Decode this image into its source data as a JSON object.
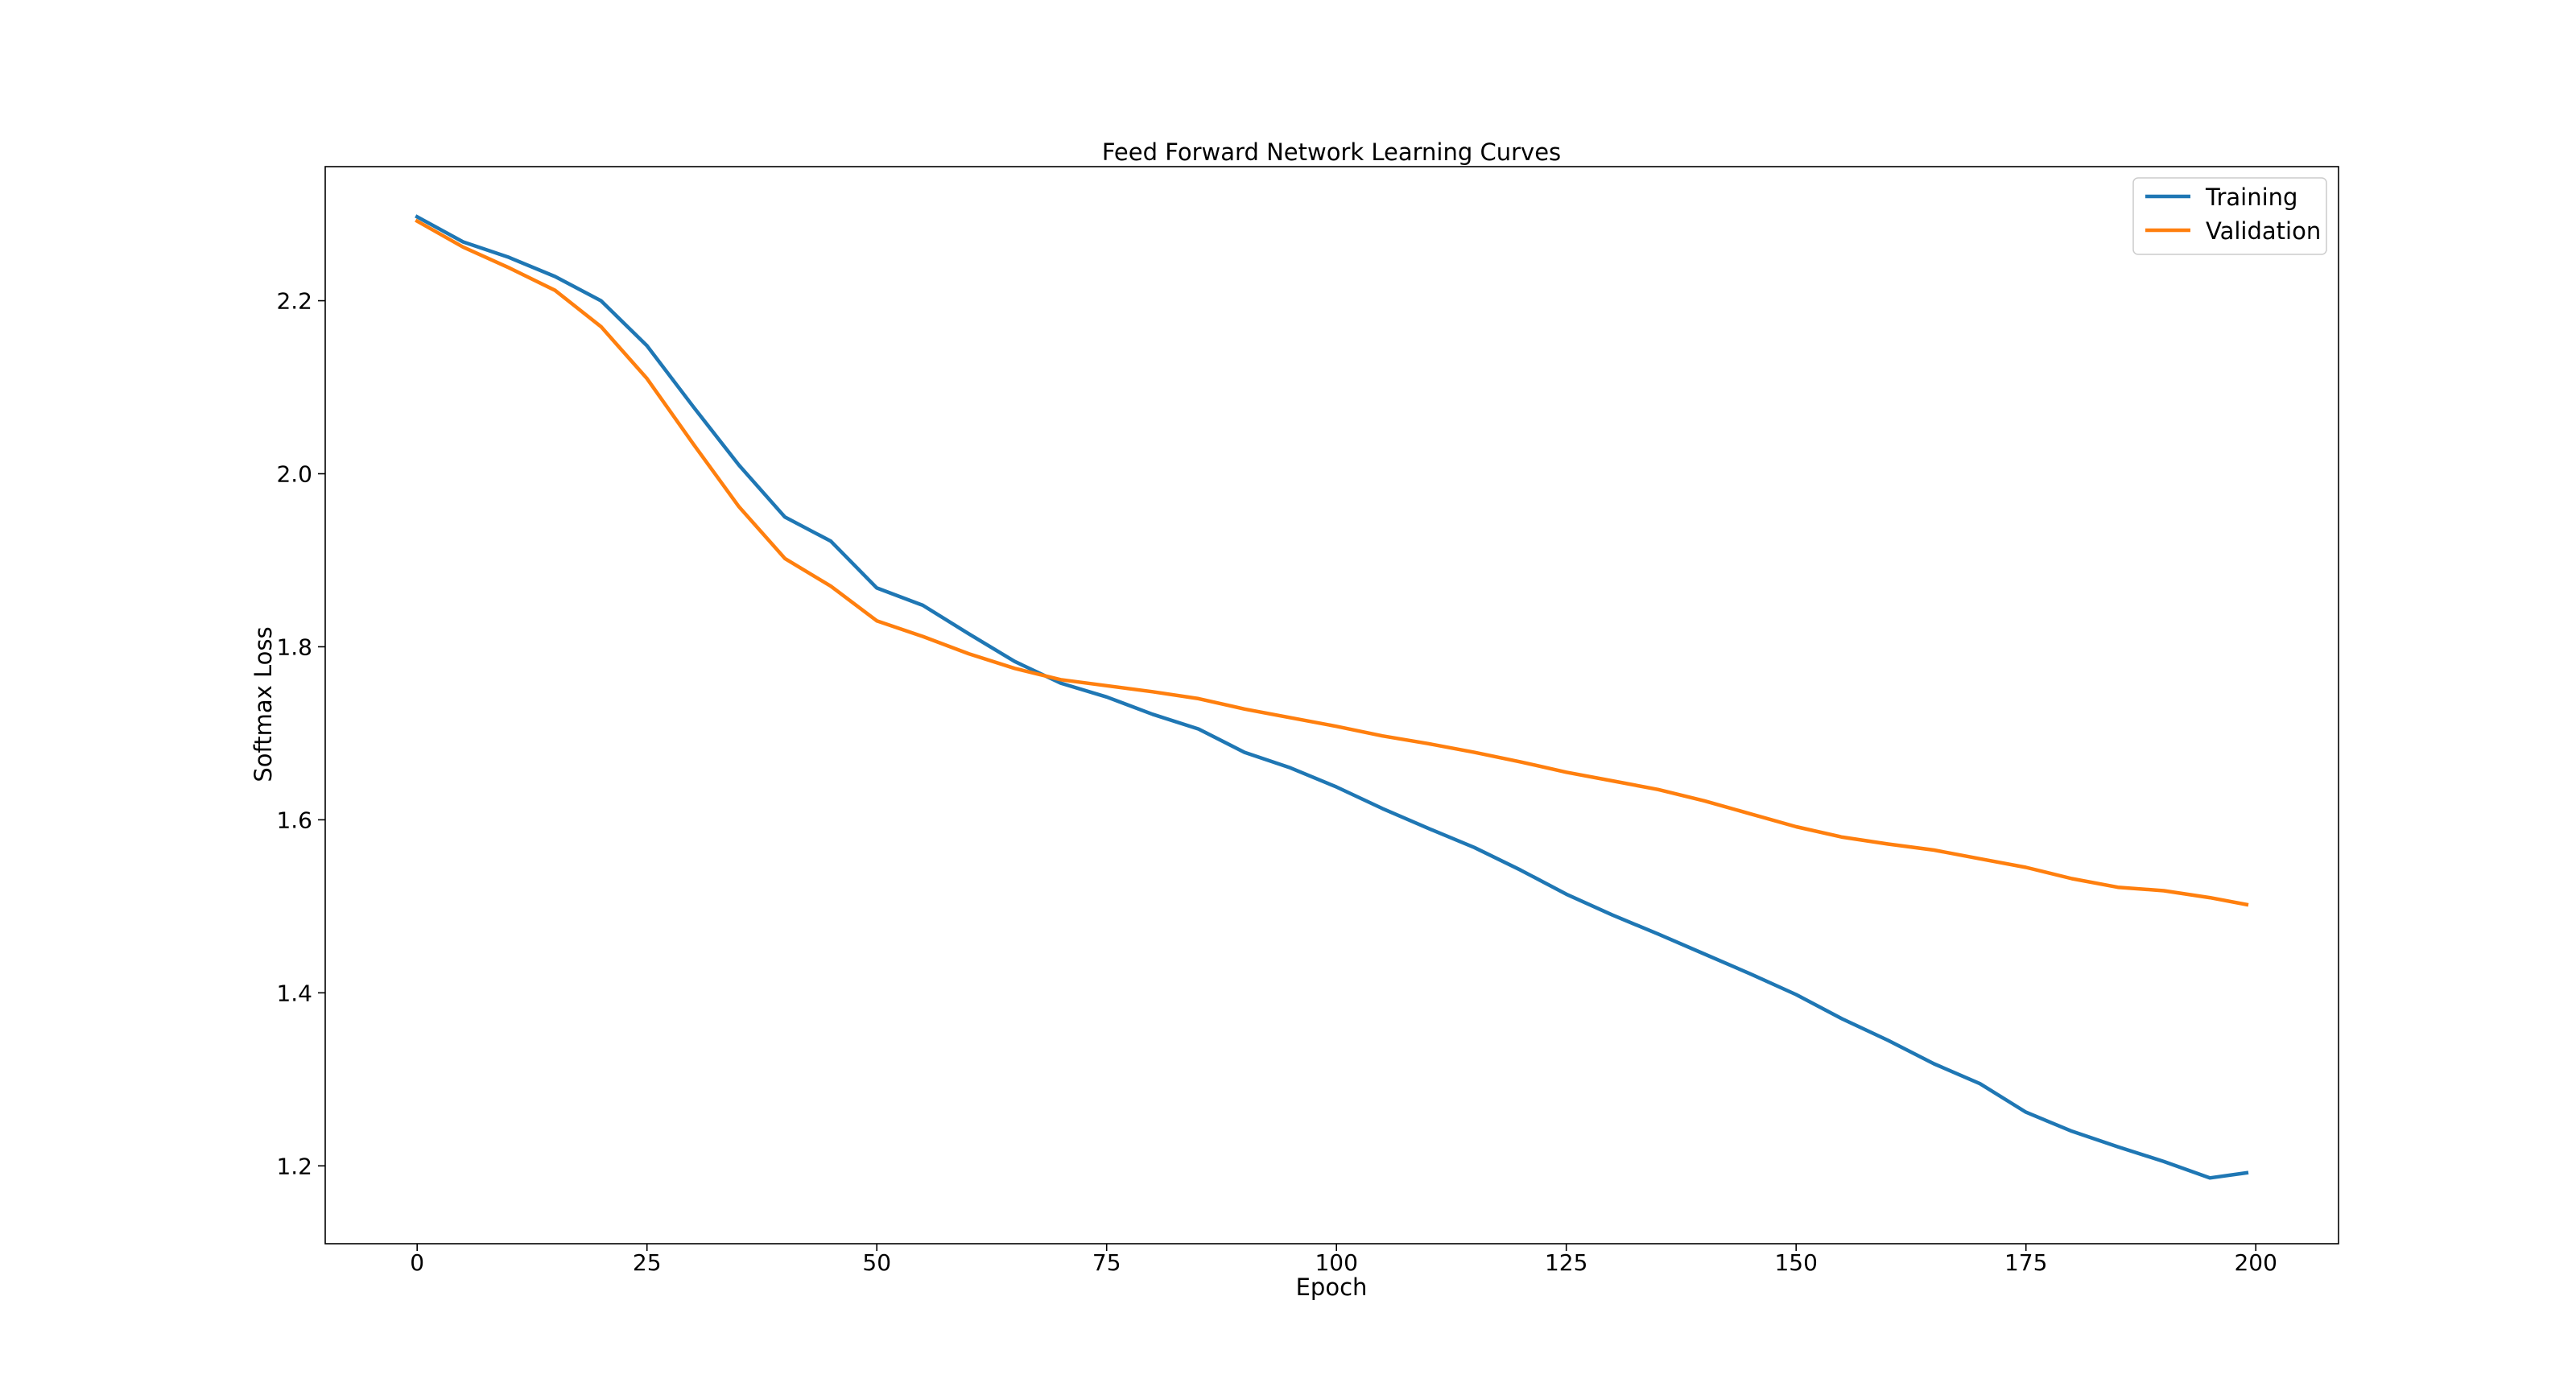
{
  "chart_data": {
    "type": "line",
    "title": "Feed Forward Network Learning Curves",
    "xlabel": "Epoch",
    "ylabel": "Softmax Loss",
    "xlim": [
      -10,
      209
    ],
    "ylim": [
      1.11,
      2.355
    ],
    "xticks": [
      0,
      25,
      50,
      75,
      100,
      125,
      150,
      175,
      200
    ],
    "yticks": [
      1.2,
      1.4,
      1.6,
      1.8,
      2.0,
      2.2
    ],
    "ytick_labels": [
      "1.2",
      "1.4",
      "1.6",
      "1.8",
      "2.0",
      "2.2"
    ],
    "grid": false,
    "legend_position": "top-right",
    "series": [
      {
        "name": "Training",
        "color": "#1f77b4",
        "anchors": [
          [
            0,
            2.297
          ],
          [
            5,
            2.268
          ],
          [
            10,
            2.25
          ],
          [
            15,
            2.228
          ],
          [
            20,
            2.2
          ],
          [
            25,
            2.148
          ],
          [
            30,
            2.078
          ],
          [
            35,
            2.01
          ],
          [
            40,
            1.95
          ],
          [
            45,
            1.922
          ],
          [
            50,
            1.868
          ],
          [
            55,
            1.848
          ],
          [
            60,
            1.815
          ],
          [
            65,
            1.783
          ],
          [
            70,
            1.758
          ],
          [
            75,
            1.742
          ],
          [
            80,
            1.722
          ],
          [
            85,
            1.705
          ],
          [
            90,
            1.678
          ],
          [
            95,
            1.66
          ],
          [
            100,
            1.638
          ],
          [
            105,
            1.613
          ],
          [
            110,
            1.59
          ],
          [
            115,
            1.568
          ],
          [
            120,
            1.542
          ],
          [
            125,
            1.514
          ],
          [
            130,
            1.49
          ],
          [
            135,
            1.468
          ],
          [
            140,
            1.445
          ],
          [
            145,
            1.422
          ],
          [
            150,
            1.398
          ],
          [
            155,
            1.37
          ],
          [
            160,
            1.345
          ],
          [
            165,
            1.318
          ],
          [
            170,
            1.295
          ],
          [
            175,
            1.262
          ],
          [
            180,
            1.24
          ],
          [
            185,
            1.222
          ],
          [
            190,
            1.205
          ],
          [
            195,
            1.186
          ],
          [
            199,
            1.192
          ]
        ]
      },
      {
        "name": "Validation",
        "color": "#ff7f0e",
        "anchors": [
          [
            0,
            2.292
          ],
          [
            5,
            2.262
          ],
          [
            10,
            2.238
          ],
          [
            15,
            2.212
          ],
          [
            20,
            2.17
          ],
          [
            25,
            2.11
          ],
          [
            30,
            2.035
          ],
          [
            35,
            1.962
          ],
          [
            40,
            1.902
          ],
          [
            45,
            1.87
          ],
          [
            50,
            1.83
          ],
          [
            55,
            1.812
          ],
          [
            60,
            1.792
          ],
          [
            65,
            1.775
          ],
          [
            70,
            1.762
          ],
          [
            75,
            1.755
          ],
          [
            80,
            1.748
          ],
          [
            85,
            1.74
          ],
          [
            90,
            1.728
          ],
          [
            95,
            1.718
          ],
          [
            100,
            1.708
          ],
          [
            105,
            1.697
          ],
          [
            110,
            1.688
          ],
          [
            115,
            1.678
          ],
          [
            120,
            1.667
          ],
          [
            125,
            1.655
          ],
          [
            130,
            1.645
          ],
          [
            135,
            1.635
          ],
          [
            140,
            1.622
          ],
          [
            145,
            1.607
          ],
          [
            150,
            1.592
          ],
          [
            155,
            1.58
          ],
          [
            160,
            1.572
          ],
          [
            165,
            1.565
          ],
          [
            170,
            1.555
          ],
          [
            175,
            1.545
          ],
          [
            180,
            1.532
          ],
          [
            185,
            1.522
          ],
          [
            190,
            1.518
          ],
          [
            195,
            1.51
          ],
          [
            199,
            1.502
          ]
        ]
      }
    ]
  }
}
